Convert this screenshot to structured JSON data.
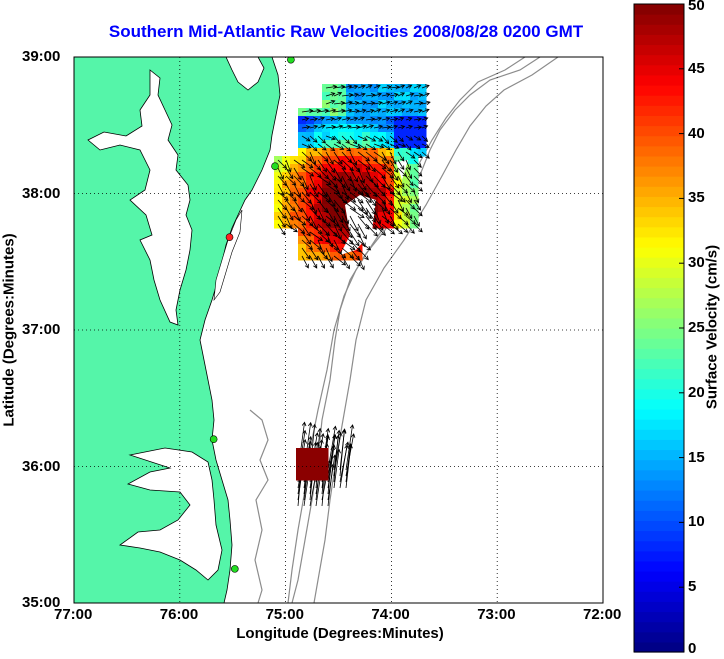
{
  "title": "Southern Mid-Atlantic Raw Velocities 2008/08/28 0200 GMT",
  "xlabel": "Longitude (Degrees:Minutes)",
  "ylabel": "Latitude (Degrees:Minutes)",
  "colorbar_label": "Surface Velocity (cm/s)",
  "colors": {
    "land": "#55f5a9",
    "title": "#0000ff",
    "bathymetry": "#8c8c8c",
    "site": "#22dd22",
    "site_alt": "#ff2222"
  },
  "map": {
    "x_ticks": [
      {
        "value": -77,
        "label": "77:00"
      },
      {
        "value": -76,
        "label": "76:00"
      },
      {
        "value": -75,
        "label": "75:00"
      },
      {
        "value": -74,
        "label": "74:00"
      },
      {
        "value": -73,
        "label": "73:00"
      },
      {
        "value": -72,
        "label": "72:00"
      }
    ],
    "y_ticks": [
      {
        "value": 35,
        "label": "35:00"
      },
      {
        "value": 36,
        "label": "36:00"
      },
      {
        "value": 37,
        "label": "37:00"
      },
      {
        "value": 38,
        "label": "38:00"
      },
      {
        "value": 39,
        "label": "39:00"
      }
    ],
    "lon_range": [
      -77,
      -72
    ],
    "lat_range": [
      35,
      39
    ],
    "grid": true,
    "colorbar": {
      "min": 0,
      "max": 50,
      "tick_labels": [
        "0",
        "5",
        "10",
        "15",
        "20",
        "25",
        "30",
        "35",
        "40",
        "45",
        "50"
      ]
    },
    "sites": [
      {
        "lon": -74.95,
        "lat": 38.98,
        "status": "active"
      },
      {
        "lon": -75.1,
        "lat": 38.2,
        "status": "active"
      },
      {
        "lon": -75.53,
        "lat": 37.68,
        "status": "inactive"
      },
      {
        "lon": -75.68,
        "lat": 36.2,
        "status": "active"
      },
      {
        "lon": -75.48,
        "lat": 35.25,
        "status": "active"
      }
    ]
  }
}
